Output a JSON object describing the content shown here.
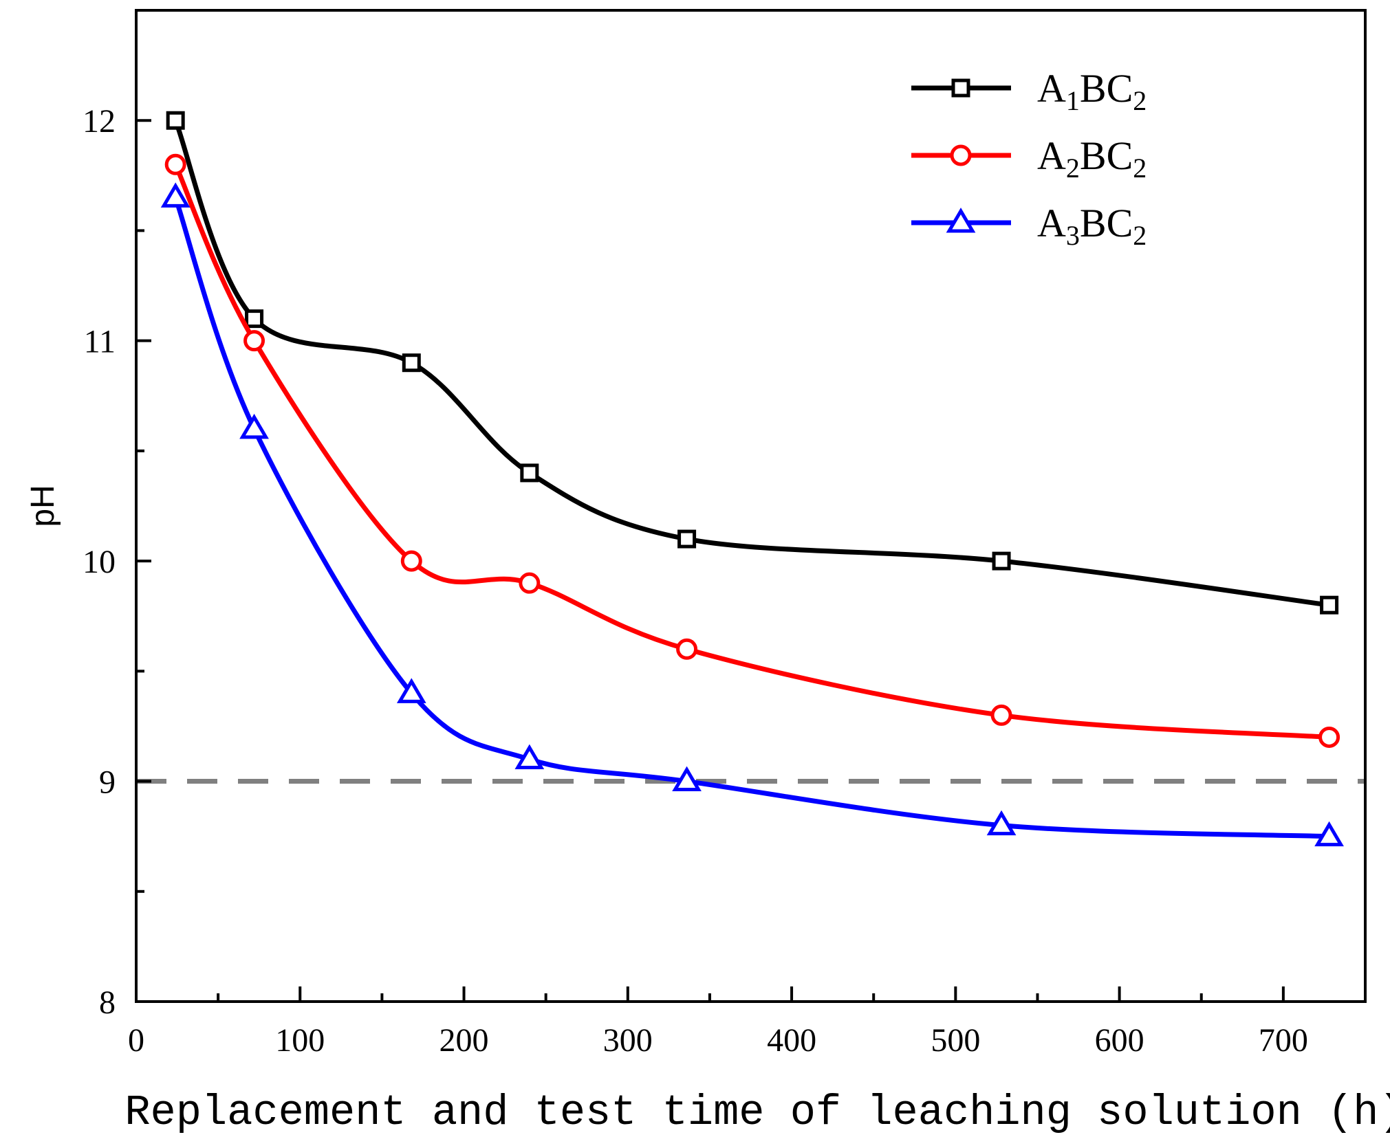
{
  "chart_data": {
    "type": "line",
    "title": "",
    "xlabel": "Replacement and test time of leaching solution (h)",
    "ylabel": "pH",
    "xlim": [
      0,
      750
    ],
    "ylim": [
      8,
      12.5
    ],
    "x_ticks": [
      0,
      100,
      200,
      300,
      400,
      500,
      600,
      700
    ],
    "y_ticks": [
      8,
      9,
      10,
      11,
      12
    ],
    "x": [
      24,
      72,
      168,
      240,
      336,
      528,
      728
    ],
    "reference_line": {
      "y": 9,
      "style": "dashed",
      "color": "#808080"
    },
    "legend_position": "top-right",
    "series": [
      {
        "name": "A1BC2",
        "legend": {
          "base": "A",
          "sub1": "1",
          "mid": "BC",
          "sub2": "2"
        },
        "color": "#000000",
        "marker": "square",
        "values": [
          12.0,
          11.1,
          10.9,
          10.4,
          10.1,
          10.0,
          9.8
        ]
      },
      {
        "name": "A2BC2",
        "legend": {
          "base": "A",
          "sub1": "2",
          "mid": "BC",
          "sub2": "2"
        },
        "color": "#ff0000",
        "marker": "circle",
        "values": [
          11.8,
          11.0,
          10.0,
          9.9,
          9.6,
          9.3,
          9.2
        ]
      },
      {
        "name": "A3BC2",
        "legend": {
          "base": "A",
          "sub1": "3",
          "mid": "BC",
          "sub2": "2"
        },
        "color": "#0000ff",
        "marker": "triangle",
        "values": [
          11.65,
          10.6,
          9.4,
          9.1,
          9.0,
          8.8,
          8.75
        ]
      }
    ]
  }
}
